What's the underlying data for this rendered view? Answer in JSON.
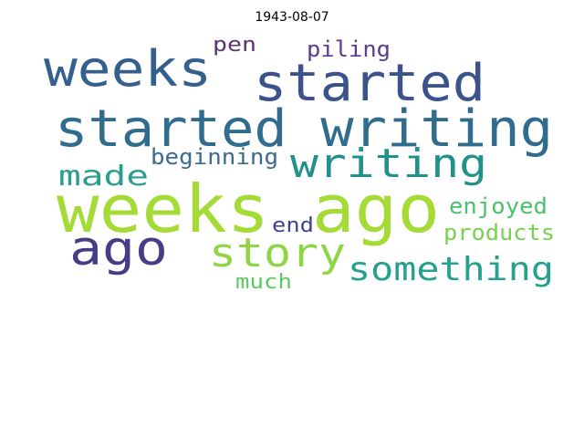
{
  "title": "1943-08-07",
  "words": [
    {
      "text": "weeks ago",
      "color": "#a5db36"
    },
    {
      "text": "started writing",
      "color": "#2f6c8e"
    },
    {
      "text": "started",
      "color": "#3b528b"
    },
    {
      "text": "weeks",
      "color": "#355f8d"
    },
    {
      "text": "ago",
      "color": "#433e85"
    },
    {
      "text": "writing",
      "color": "#21918c"
    },
    {
      "text": "story",
      "color": "#8ed645"
    },
    {
      "text": "something",
      "color": "#25a18e"
    },
    {
      "text": "made",
      "color": "#2a9d8f"
    },
    {
      "text": "beginning",
      "color": "#3e6a91"
    },
    {
      "text": "piling",
      "color": "#5c3c8e"
    },
    {
      "text": "pen",
      "color": "#5c3272"
    },
    {
      "text": "enjoyed",
      "color": "#4ac16d"
    },
    {
      "text": "products",
      "color": "#7ad151"
    },
    {
      "text": "end",
      "color": "#414487"
    },
    {
      "text": "much",
      "color": "#5ec962"
    }
  ]
}
